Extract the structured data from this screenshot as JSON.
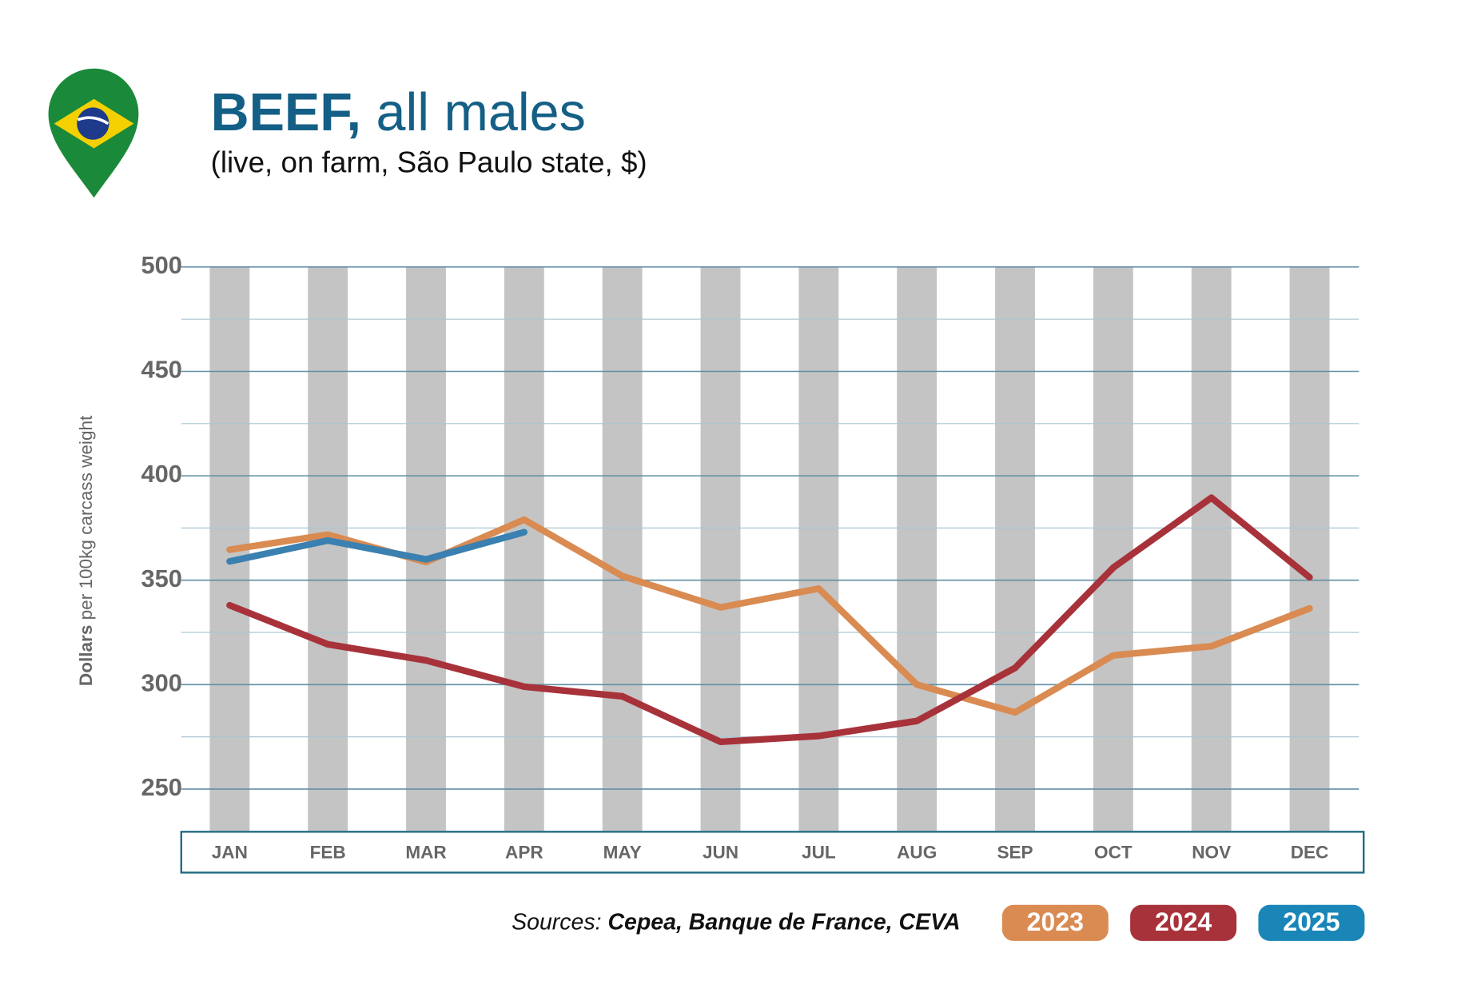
{
  "chart_data": {
    "type": "line",
    "title_bold": "BEEF,",
    "title_rest": "all males",
    "subtitle": "(live, on farm, São Paulo state, $)",
    "ylabel_bold": "Dollars",
    "ylabel_rest": "per 100kg carcass weight",
    "source_label": "Sources:",
    "source_names": "Cepea, Banque de France, CEVA",
    "categories": [
      "JAN",
      "FEB",
      "MAR",
      "APR",
      "MAY",
      "JUN",
      "JUL",
      "AUG",
      "SEP",
      "OCT",
      "NOV",
      "DEC"
    ],
    "series": [
      {
        "name": "2023",
        "color": "#d98b52",
        "values": [
          364.6,
          371.8,
          358.7,
          379,
          352,
          337,
          346,
          300,
          286.7,
          314,
          318.4,
          336.5
        ]
      },
      {
        "name": "2024",
        "color": "#a8323a",
        "values": [
          338,
          319.3,
          311.6,
          299,
          294.4,
          272.6,
          275.4,
          282.6,
          308,
          356,
          389.5,
          351.4
        ]
      },
      {
        "name": "2025",
        "color": "#3a80b0",
        "values": [
          359,
          369,
          360,
          373,
          null,
          null,
          null,
          null,
          null,
          null,
          null,
          null
        ]
      }
    ],
    "ylim": [
      230,
      500
    ],
    "yticks": [
      250,
      300,
      350,
      400,
      450,
      500
    ],
    "minor_yticks": [
      275,
      325,
      375,
      425,
      475
    ],
    "grid": true
  }
}
